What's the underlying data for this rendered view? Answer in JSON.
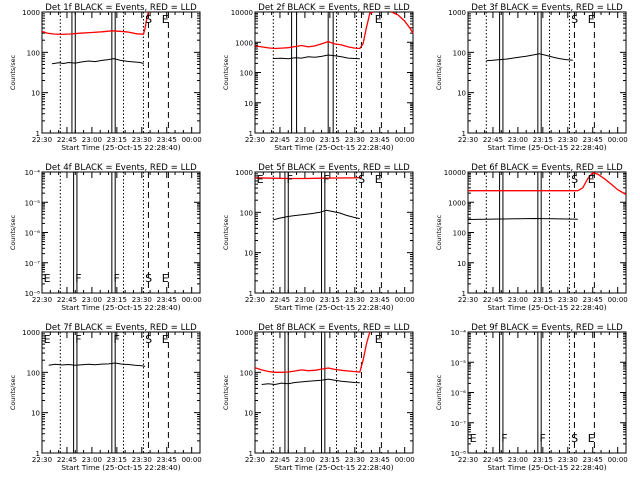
{
  "figure": {
    "common": {
      "xlabel": "Start Time (25-Oct-15 22:28:40)",
      "ylabel": "Counts/sec",
      "x_tick_labels": [
        "22:30",
        "22:45",
        "23:00",
        "23:15",
        "23:30",
        "23:45",
        "00:00"
      ],
      "series_colors": {
        "events": "#000000",
        "lld": "#ff0000"
      }
    },
    "marker_letters": [
      "E",
      "F",
      "F",
      "S",
      "E"
    ]
  },
  "chart_data": [
    {
      "type": "line",
      "title": "Det 1f BLACK = Events, RED = LLD",
      "xlabel": "Start Time (25-Oct-15 22:28:40)",
      "ylabel": "Counts/sec",
      "x_unit": "minutes after 22:30",
      "xlim": [
        0,
        95
      ],
      "yscale": "log",
      "ylim": [
        1,
        1000
      ],
      "y_tick_labels": [
        "1",
        "10",
        "100",
        "1000"
      ],
      "intervals": {
        "dotted": [
          11,
          49,
          61
        ],
        "solid_pairs": [
          [
            18,
            20
          ],
          [
            42,
            44
          ]
        ],
        "dashed": [
          64,
          76
        ]
      },
      "letters": [
        "",
        "",
        "",
        "S",
        "E"
      ],
      "series": [
        {
          "color": "red",
          "x": [
            0,
            3,
            7,
            12,
            17,
            23,
            30,
            36,
            42,
            47,
            52,
            57,
            61,
            62,
            63,
            64
          ],
          "values": [
            330,
            300,
            285,
            278,
            285,
            298,
            310,
            323,
            342,
            333,
            318,
            288,
            282,
            400,
            700,
            1000
          ]
        },
        {
          "color": "black",
          "x": [
            6,
            10,
            13,
            16,
            20,
            24,
            28,
            32,
            36,
            40,
            43,
            47,
            51,
            55,
            59,
            61
          ],
          "values": [
            52,
            55,
            53,
            56,
            54,
            58,
            61,
            59,
            63,
            66,
            70,
            64,
            60,
            58,
            56,
            53
          ]
        }
      ]
    },
    {
      "type": "line",
      "title": "Det 2f BLACK = Events, RED = LLD",
      "xlabel": "Start Time (25-Oct-15 22:28:40)",
      "ylabel": "Counts/sec",
      "x_unit": "minutes after 22:30",
      "xlim": [
        0,
        95
      ],
      "yscale": "log",
      "ylim": [
        1,
        10000
      ],
      "y_tick_labels": [
        "1",
        "10",
        "100",
        "1000",
        "10000"
      ],
      "intervals": {
        "dotted": [
          11,
          49,
          61
        ],
        "solid_pairs": [
          [
            22,
            25
          ],
          [
            44,
            47
          ]
        ],
        "dashed": [
          64,
          76
        ]
      },
      "letters": [
        "",
        "",
        "",
        "",
        "E"
      ],
      "series": [
        {
          "color": "red",
          "x": [
            0,
            4,
            8,
            12,
            16,
            20,
            24,
            28,
            32,
            36,
            40,
            44,
            48,
            52,
            56,
            60,
            63,
            65,
            67,
            69,
            71
          ],
          "values": [
            760,
            700,
            650,
            620,
            640,
            660,
            720,
            780,
            700,
            760,
            880,
            1050,
            880,
            820,
            700,
            640,
            620,
            900,
            3000,
            9000,
            10000
          ]
        },
        {
          "color": "black",
          "x": [
            11,
            16,
            20,
            24,
            28,
            32,
            36,
            40,
            44,
            48,
            52,
            56,
            60,
            63
          ],
          "values": [
            290,
            295,
            285,
            305,
            300,
            330,
            320,
            340,
            380,
            360,
            330,
            300,
            290,
            285
          ]
        },
        {
          "color": "red",
          "x": [
            82,
            86,
            90,
            93,
            95
          ],
          "values": [
            10000,
            8000,
            5000,
            3000,
            2000
          ]
        }
      ]
    },
    {
      "type": "line",
      "title": "Det 3f BLACK = Events, RED = LLD",
      "xlabel": "Start Time (25-Oct-15 22:28:40)",
      "ylabel": "Counts/sec",
      "x_unit": "minutes after 22:30",
      "xlim": [
        0,
        95
      ],
      "yscale": "log",
      "ylim": [
        1,
        1000
      ],
      "y_tick_labels": [
        "1",
        "10",
        "100",
        "1000"
      ],
      "intervals": {
        "dotted": [
          11,
          49,
          61
        ],
        "solid_pairs": [
          [
            19,
            21
          ],
          [
            42,
            44
          ]
        ],
        "dashed": [
          64,
          76
        ]
      },
      "letters": [
        "",
        "",
        "",
        "S",
        "E"
      ],
      "series": [
        {
          "color": "black",
          "x": [
            11,
            15,
            19,
            23,
            27,
            31,
            35,
            39,
            43,
            47,
            51,
            55,
            59,
            63
          ],
          "values": [
            62,
            64,
            66,
            68,
            72,
            76,
            80,
            86,
            92,
            84,
            76,
            70,
            66,
            64
          ]
        }
      ]
    },
    {
      "type": "line",
      "title": "Det 4f BLACK = Events, RED = LLD",
      "xlabel": "Start Time (25-Oct-15 22:28:40)",
      "ylabel": "Counts/sec",
      "x_unit": "minutes after 22:30",
      "xlim": [
        0,
        95
      ],
      "yscale": "log",
      "ylim": [
        1e-08,
        0.0001
      ],
      "y_tick_labels": [
        "10⁻⁸",
        "10⁻⁷",
        "10⁻⁶",
        "10⁻⁵",
        "10⁻⁴"
      ],
      "intervals": {
        "dotted": [
          11,
          49,
          61
        ],
        "solid_pairs": [
          [
            19,
            21
          ],
          [
            42,
            44
          ]
        ],
        "dashed": [
          64,
          76
        ]
      },
      "letters": [
        "E",
        "F",
        "F",
        "S",
        "E"
      ],
      "series": []
    },
    {
      "type": "line",
      "title": "Det 5f BLACK = Events, RED = LLD",
      "xlabel": "Start Time (25-Oct-15 22:28:40)",
      "ylabel": "Counts/sec",
      "x_unit": "minutes after 22:30",
      "xlim": [
        0,
        95
      ],
      "yscale": "log",
      "ylim": [
        1,
        1000
      ],
      "y_tick_labels": [
        "1",
        "10",
        "100",
        "1000"
      ],
      "intervals": {
        "dotted": [
          11,
          49,
          61
        ],
        "solid_pairs": [
          [
            18,
            20
          ],
          [
            40,
            42
          ]
        ],
        "dashed": [
          64,
          76
        ]
      },
      "letters": [
        "E",
        "F",
        "F",
        "S",
        "E"
      ],
      "series": [
        {
          "color": "red",
          "x": [
            0,
            10,
            20,
            30,
            40,
            50,
            60,
            64
          ],
          "values": [
            720,
            700,
            690,
            690,
            700,
            710,
            720,
            730
          ]
        },
        {
          "color": "black",
          "x": [
            11,
            15,
            19,
            23,
            27,
            31,
            35,
            39,
            43,
            47,
            51,
            55,
            59,
            63
          ],
          "values": [
            65,
            72,
            78,
            82,
            86,
            90,
            94,
            100,
            112,
            104,
            96,
            84,
            76,
            70
          ]
        }
      ]
    },
    {
      "type": "line",
      "title": "Det 6f BLACK = Events, RED = LLD",
      "xlabel": "Start Time (25-Oct-15 22:28:40)",
      "ylabel": "Counts/sec",
      "x_unit": "minutes after 22:30",
      "xlim": [
        0,
        95
      ],
      "yscale": "log",
      "ylim": [
        1,
        10000
      ],
      "y_tick_labels": [
        "1",
        "10",
        "100",
        "1000",
        "10000"
      ],
      "intervals": {
        "dotted": [
          11,
          49,
          61
        ],
        "solid_pairs": [
          [
            19,
            21
          ],
          [
            42,
            44
          ]
        ],
        "dashed": [
          64,
          76
        ]
      },
      "letters": [
        "",
        "",
        "",
        "S",
        "E"
      ],
      "series": [
        {
          "color": "red",
          "x": [
            0,
            20,
            40,
            60,
            66,
            69,
            72,
            75,
            78,
            82,
            86,
            90,
            95
          ],
          "values": [
            2400,
            2400,
            2400,
            2400,
            2400,
            3000,
            6000,
            9500,
            8500,
            6000,
            4000,
            2600,
            1800
          ]
        },
        {
          "color": "black",
          "x": [
            0,
            10,
            20,
            30,
            40,
            50,
            60,
            66
          ],
          "values": [
            270,
            275,
            280,
            285,
            290,
            285,
            280,
            275
          ]
        }
      ]
    },
    {
      "type": "line",
      "title": "Det 7f BLACK = Events, RED = LLD",
      "xlabel": "Start Time (25-Oct-15 22:28:40)",
      "ylabel": "Counts/sec",
      "x_unit": "minutes after 22:30",
      "xlim": [
        0,
        95
      ],
      "yscale": "log",
      "ylim": [
        1,
        1000
      ],
      "y_tick_labels": [
        "1",
        "10",
        "100",
        "1000"
      ],
      "intervals": {
        "dotted": [
          11,
          49,
          61
        ],
        "solid_pairs": [
          [
            19,
            21
          ],
          [
            42,
            44
          ]
        ],
        "dashed": [
          64,
          76
        ]
      },
      "letters": [
        "E",
        "F",
        "F",
        "S",
        "E"
      ],
      "series": [
        {
          "color": "black",
          "x": [
            4,
            8,
            12,
            16,
            20,
            24,
            28,
            32,
            36,
            40,
            44,
            48,
            52,
            56,
            60,
            62
          ],
          "values": [
            150,
            158,
            152,
            156,
            150,
            155,
            158,
            154,
            160,
            162,
            170,
            160,
            156,
            150,
            146,
            140
          ]
        }
      ]
    },
    {
      "type": "line",
      "title": "Det 8f BLACK = Events, RED = LLD",
      "xlabel": "Start Time (25-Oct-15 22:28:40)",
      "ylabel": "Counts/sec",
      "x_unit": "minutes after 22:30",
      "xlim": [
        0,
        95
      ],
      "yscale": "log",
      "ylim": [
        1,
        1000
      ],
      "y_tick_labels": [
        "1",
        "10",
        "100",
        "1000"
      ],
      "intervals": {
        "dotted": [
          11,
          49,
          61
        ],
        "solid_pairs": [
          [
            18,
            20
          ],
          [
            40,
            42
          ]
        ],
        "dashed": [
          64,
          76
        ]
      },
      "letters": [
        "",
        "",
        "",
        "",
        "E"
      ],
      "series": [
        {
          "color": "red",
          "x": [
            0,
            4,
            8,
            12,
            16,
            20,
            24,
            28,
            32,
            36,
            40,
            44,
            48,
            52,
            56,
            60,
            63,
            65,
            67,
            69
          ],
          "values": [
            130,
            115,
            105,
            100,
            100,
            102,
            108,
            115,
            110,
            112,
            120,
            128,
            118,
            112,
            108,
            104,
            102,
            200,
            500,
            1000
          ]
        },
        {
          "color": "black",
          "x": [
            4,
            8,
            12,
            16,
            20,
            24,
            28,
            32,
            36,
            40,
            44,
            48,
            52,
            56,
            60,
            63
          ],
          "values": [
            50,
            52,
            50,
            54,
            52,
            56,
            58,
            60,
            62,
            64,
            68,
            64,
            60,
            58,
            56,
            55
          ]
        }
      ]
    },
    {
      "type": "line",
      "title": "Det 9f BLACK = Events, RED = LLD",
      "xlabel": "Start Time (25-Oct-15 22:28:40)",
      "ylabel": "Counts/sec",
      "x_unit": "minutes after 22:30",
      "xlim": [
        0,
        95
      ],
      "yscale": "log",
      "ylim": [
        1e-08,
        0.0001
      ],
      "y_tick_labels": [
        "10⁻⁸",
        "10⁻⁷",
        "10⁻⁶",
        "10⁻⁵",
        "10⁻⁴"
      ],
      "intervals": {
        "dotted": [
          11,
          49,
          61
        ],
        "solid_pairs": [
          [
            19,
            21
          ],
          [
            42,
            44
          ]
        ],
        "dashed": [
          64,
          76
        ]
      },
      "letters": [
        "E",
        "F",
        "F",
        "S",
        "E"
      ],
      "series": []
    }
  ]
}
